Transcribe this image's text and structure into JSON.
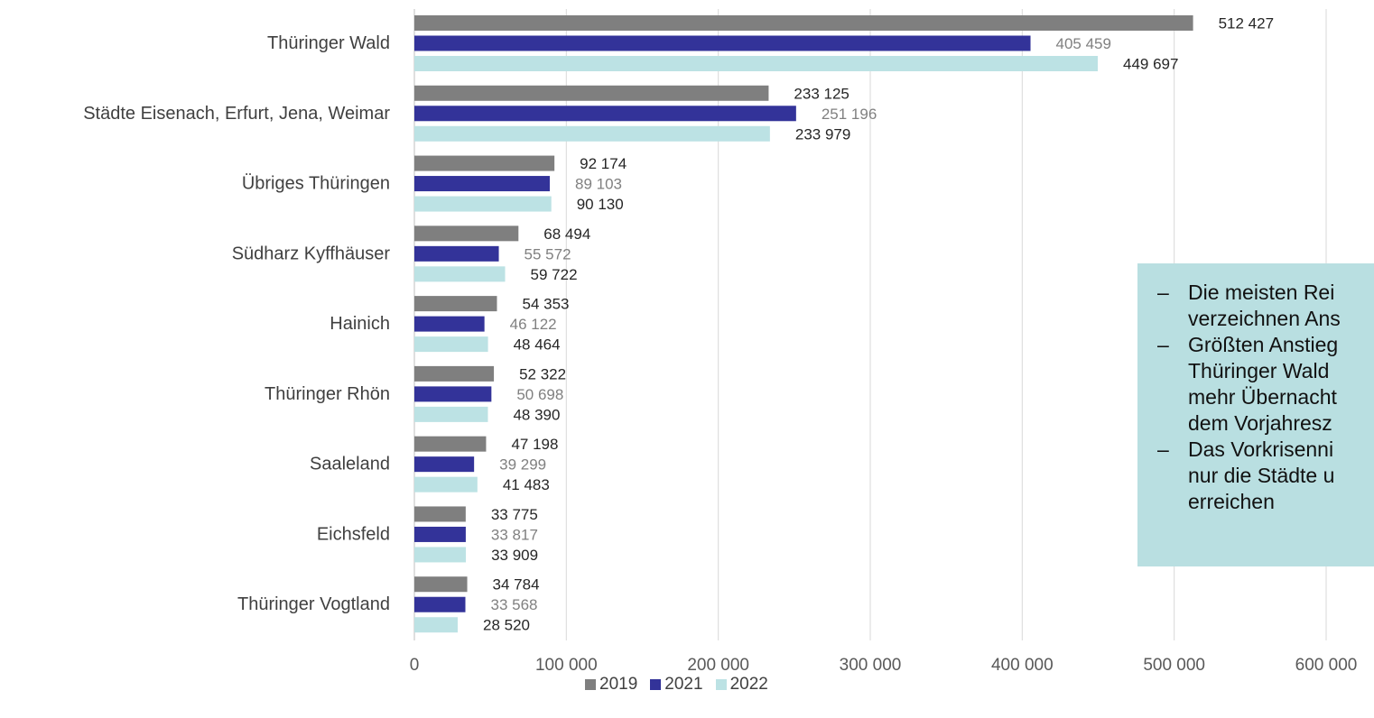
{
  "chart_data": {
    "type": "bar",
    "orientation": "horizontal",
    "categories": [
      "Thüringer Wald",
      "Städte Eisenach, Erfurt, Jena, Weimar",
      "Übriges Thüringen",
      "Südharz Kyffhäuser",
      "Hainich",
      "Thüringer Rhön",
      "Saaleland",
      "Eichsfeld",
      "Thüringer Vogtland"
    ],
    "series": [
      {
        "name": "2019",
        "color": "#7f7f7f",
        "label_color": "#262626",
        "values": [
          512427,
          233125,
          92174,
          68494,
          54353,
          52322,
          47198,
          33775,
          34784
        ],
        "labels": [
          "512 427",
          "233 125",
          "92 174",
          "68 494",
          "54 353",
          "52 322",
          "47 198",
          "33 775",
          "34 784"
        ]
      },
      {
        "name": "2021",
        "color": "#333399",
        "label_color": "#808080",
        "values": [
          405459,
          251196,
          89103,
          55572,
          46122,
          50698,
          39299,
          33817,
          33568
        ],
        "labels": [
          "405 459",
          "251 196",
          "89 103",
          "55 572",
          "46 122",
          "50 698",
          "39 299",
          "33 817",
          "33 568"
        ]
      },
      {
        "name": "2022",
        "color": "#bce2e4",
        "label_color": "#262626",
        "values": [
          449697,
          233979,
          90130,
          59722,
          48464,
          48390,
          41483,
          33909,
          28520
        ],
        "labels": [
          "449 697",
          "233 979",
          "90 130",
          "59 722",
          "48 464",
          "48 390",
          "41 483",
          "33 909",
          "28 520"
        ]
      }
    ],
    "xlim": [
      0,
      600000
    ],
    "xticks": [
      0,
      100000,
      200000,
      300000,
      400000,
      500000,
      600000
    ],
    "xtick_labels": [
      "0",
      "100 000",
      "200 000",
      "300 000",
      "400 000",
      "500 000",
      "600 000"
    ],
    "grid": "vertical",
    "legend_position": "bottom"
  },
  "note": {
    "items": [
      "Die meisten Rei\nverzeichnen Ans",
      "Größten Anstieg\nThüringer Wald\nmehr Übernacht\ndem Vorjahresz",
      "Das Vorkrisenni\nnur die Städte u\nerreichen"
    ],
    "dash": "–"
  },
  "legend": {
    "items": [
      {
        "label": "2019",
        "color": "#7f7f7f"
      },
      {
        "label": "2021",
        "color": "#333399"
      },
      {
        "label": "2022",
        "color": "#bce2e4"
      }
    ]
  }
}
